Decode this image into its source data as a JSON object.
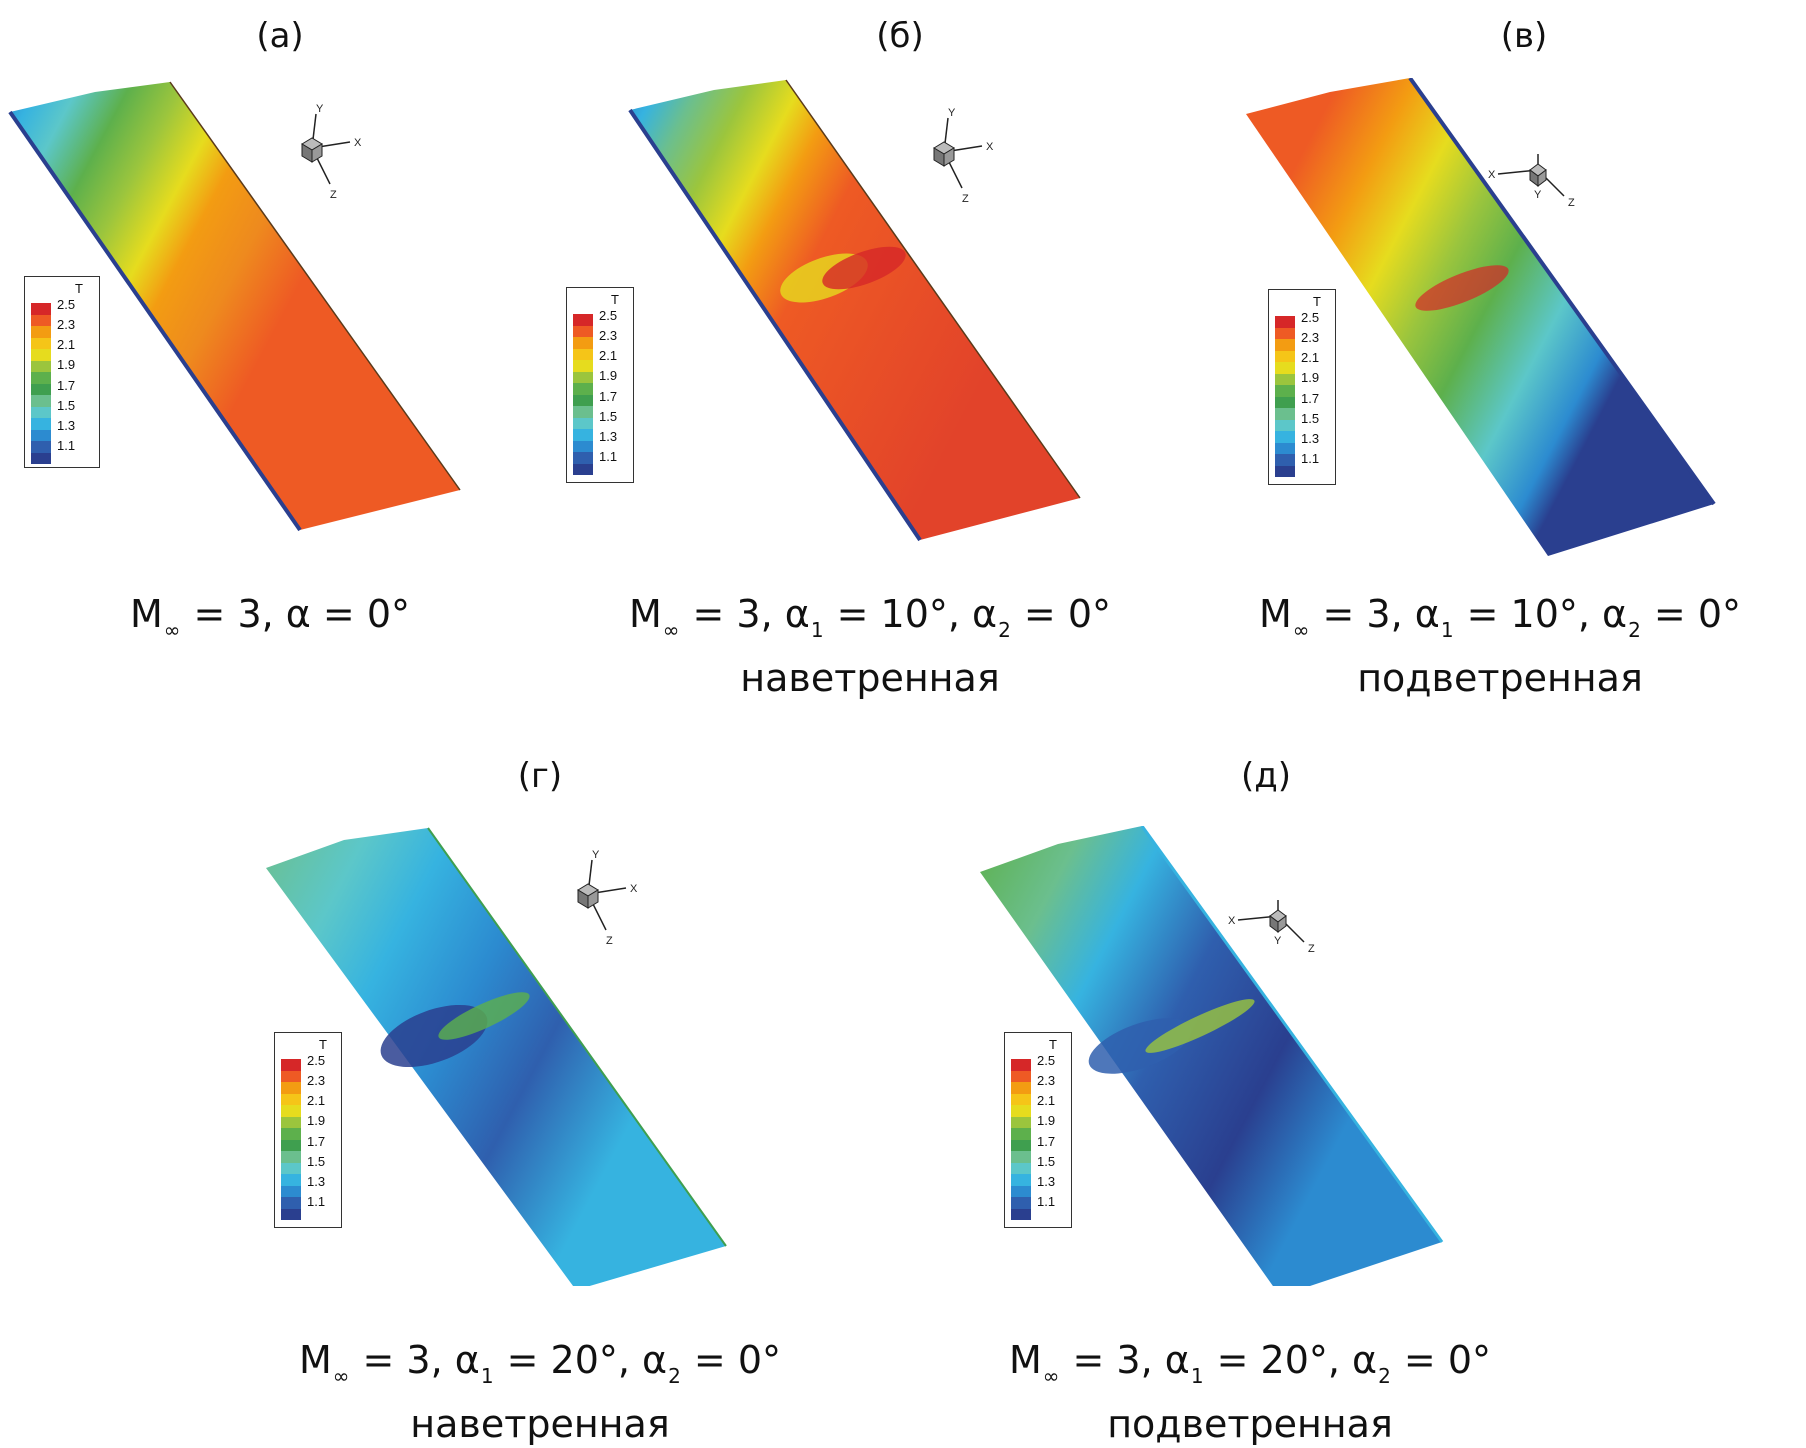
{
  "legend": {
    "title": "T",
    "levels": [
      "2.5",
      "2.3",
      "2.1",
      "1.9",
      "1.7",
      "1.5",
      "1.3",
      "1.1"
    ],
    "colors": [
      "#d62728",
      "#ee5a24",
      "#f39c12",
      "#f5c518",
      "#e6dc1e",
      "#9bc53d",
      "#5db04c",
      "#3f9f4f",
      "#6bbf8e",
      "#5cc7c9",
      "#36b3e0",
      "#2c8bd0",
      "#2f5fae",
      "#2a3f8f"
    ]
  },
  "axis_labels": {
    "x": "X",
    "y": "Y",
    "z": "Z"
  },
  "panels": [
    {
      "label": "(а)",
      "caption": {
        "m": "M",
        "sub": "∞",
        "rest": " = 3, α = 0°",
        "line2": ""
      }
    },
    {
      "label": "(б)",
      "caption": {
        "m": "M",
        "sub": "∞",
        "rest": " = 3, α",
        "a1sub": "1",
        "rest2": " = 10°, α",
        "a2sub": "2",
        "rest3": " = 0°",
        "line2": "наветренная"
      }
    },
    {
      "label": "(в)",
      "caption": {
        "m": "M",
        "sub": "∞",
        "rest": " = 3, α",
        "a1sub": "1",
        "rest2": " = 10°, α",
        "a2sub": "2",
        "rest3": " = 0°",
        "line2": "подветренная"
      }
    },
    {
      "label": "(г)",
      "caption": {
        "m": "M",
        "sub": "∞",
        "rest": " = 3, α",
        "a1sub": "1",
        "rest2": " = 20°, α",
        "a2sub": "2",
        "rest3": " = 0°",
        "line2": "наветренная"
      }
    },
    {
      "label": "(д)",
      "caption": {
        "m": "M",
        "sub": "∞",
        "rest": " = 3, α",
        "a1sub": "1",
        "rest2": " = 20°, α",
        "a2sub": "2",
        "rest3": " = 0°",
        "line2": "подветренная"
      }
    }
  ]
}
